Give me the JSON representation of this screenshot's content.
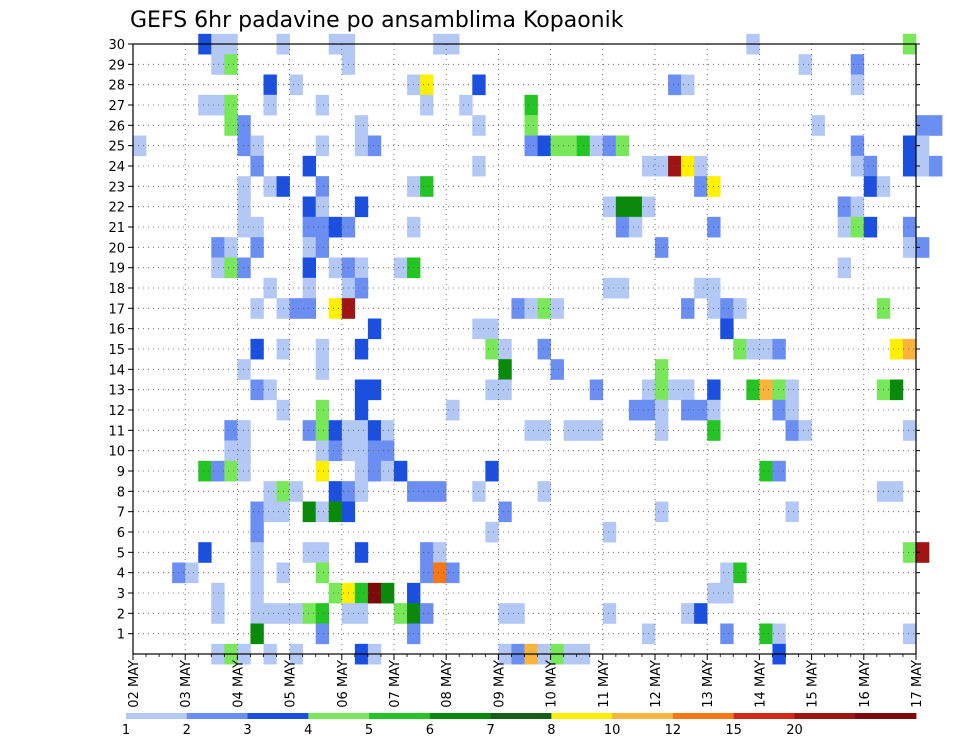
{
  "chart_data": {
    "type": "heatmap",
    "title": "GEFS 6hr padavine po ansamblima Kopaonik",
    "xlabel": "",
    "ylabel": "",
    "x_tick_labels": [
      "02 MAY",
      "03 MAY",
      "04 MAY",
      "05 MAY",
      "06 MAY",
      "07 MAY",
      "08 MAY",
      "09 MAY",
      "10 MAY",
      "11 MAY",
      "12 MAY",
      "13 MAY",
      "14 MAY",
      "15 MAY",
      "16 MAY",
      "17 MAY"
    ],
    "y_tick_labels": [
      "1",
      "2",
      "3",
      "4",
      "5",
      "6",
      "7",
      "8",
      "9",
      "10",
      "11",
      "12",
      "13",
      "14",
      "15",
      "16",
      "17",
      "18",
      "19",
      "20",
      "21",
      "22",
      "23",
      "24",
      "25",
      "26",
      "27",
      "28",
      "29",
      "30"
    ],
    "ensemble_range": [
      0,
      30
    ],
    "steps_per_day": 4,
    "grid": "dotted",
    "colorbar": {
      "tick_labels": [
        "1",
        "2",
        "3",
        "4",
        "5",
        "6",
        "7",
        "8",
        "10",
        "12",
        "15",
        "20"
      ],
      "bin_colors": [
        "#b4c8f5",
        "#6b8ef2",
        "#1a4fe0",
        "#78e85a",
        "#25c425",
        "#0a8a0a",
        "#156015",
        "#fff000",
        "#fab43c",
        "#f57814",
        "#d22814",
        "#a01414",
        "#7d0a0a"
      ]
    },
    "cells": [
      [
        5,
        30,
        2
      ],
      [
        6,
        30,
        0
      ],
      [
        7,
        30,
        0
      ],
      [
        11,
        30,
        0
      ],
      [
        15,
        30,
        0
      ],
      [
        16,
        30,
        0
      ],
      [
        23,
        30,
        0
      ],
      [
        24,
        30,
        0
      ],
      [
        47,
        30,
        0
      ],
      [
        59,
        30,
        3
      ],
      [
        6,
        29,
        0
      ],
      [
        7,
        29,
        3
      ],
      [
        16,
        29,
        0
      ],
      [
        51,
        29,
        0
      ],
      [
        55,
        29,
        1
      ],
      [
        10,
        28,
        2
      ],
      [
        12,
        28,
        0
      ],
      [
        21,
        28,
        0
      ],
      [
        22,
        28,
        7
      ],
      [
        26,
        28,
        2
      ],
      [
        41,
        28,
        1
      ],
      [
        42,
        28,
        0
      ],
      [
        55,
        28,
        0
      ],
      [
        5,
        27,
        0
      ],
      [
        6,
        27,
        0
      ],
      [
        7,
        27,
        3
      ],
      [
        10,
        27,
        0
      ],
      [
        14,
        27,
        0
      ],
      [
        22,
        27,
        0
      ],
      [
        25,
        27,
        0
      ],
      [
        30,
        27,
        4
      ],
      [
        7,
        26,
        3
      ],
      [
        8,
        26,
        1
      ],
      [
        17,
        26,
        0
      ],
      [
        26,
        26,
        0
      ],
      [
        30,
        26,
        3
      ],
      [
        52,
        26,
        0
      ],
      [
        60,
        26,
        1
      ],
      [
        61,
        26,
        1
      ],
      [
        0,
        25,
        0
      ],
      [
        8,
        25,
        1
      ],
      [
        9,
        25,
        0
      ],
      [
        14,
        25,
        0
      ],
      [
        17,
        25,
        0
      ],
      [
        18,
        25,
        1
      ],
      [
        30,
        25,
        1
      ],
      [
        31,
        25,
        2
      ],
      [
        32,
        25,
        3
      ],
      [
        33,
        25,
        3
      ],
      [
        34,
        25,
        4
      ],
      [
        35,
        25,
        0
      ],
      [
        36,
        25,
        1
      ],
      [
        37,
        25,
        3
      ],
      [
        55,
        25,
        1
      ],
      [
        59,
        25,
        2
      ],
      [
        60,
        25,
        0
      ],
      [
        9,
        24,
        1
      ],
      [
        13,
        24,
        2
      ],
      [
        26,
        24,
        0
      ],
      [
        39,
        24,
        0
      ],
      [
        40,
        24,
        0
      ],
      [
        41,
        24,
        11
      ],
      [
        42,
        24,
        7
      ],
      [
        43,
        24,
        0
      ],
      [
        55,
        24,
        0
      ],
      [
        56,
        24,
        1
      ],
      [
        59,
        24,
        2
      ],
      [
        60,
        24,
        0
      ],
      [
        61,
        24,
        1
      ],
      [
        8,
        23,
        0
      ],
      [
        10,
        23,
        0
      ],
      [
        11,
        23,
        2
      ],
      [
        14,
        23,
        1
      ],
      [
        21,
        23,
        0
      ],
      [
        22,
        23,
        4
      ],
      [
        43,
        23,
        1
      ],
      [
        44,
        23,
        7
      ],
      [
        56,
        23,
        2
      ],
      [
        57,
        23,
        0
      ],
      [
        8,
        22,
        0
      ],
      [
        13,
        22,
        2
      ],
      [
        14,
        22,
        0
      ],
      [
        17,
        22,
        2
      ],
      [
        36,
        22,
        0
      ],
      [
        37,
        22,
        5
      ],
      [
        38,
        22,
        5
      ],
      [
        39,
        22,
        0
      ],
      [
        54,
        22,
        1
      ],
      [
        55,
        22,
        0
      ],
      [
        8,
        21,
        0
      ],
      [
        9,
        21,
        0
      ],
      [
        13,
        21,
        1
      ],
      [
        14,
        21,
        1
      ],
      [
        15,
        21,
        2
      ],
      [
        16,
        21,
        1
      ],
      [
        21,
        21,
        0
      ],
      [
        37,
        21,
        1
      ],
      [
        38,
        21,
        0
      ],
      [
        44,
        21,
        1
      ],
      [
        54,
        21,
        0
      ],
      [
        55,
        21,
        3
      ],
      [
        56,
        21,
        2
      ],
      [
        59,
        21,
        1
      ],
      [
        6,
        20,
        1
      ],
      [
        7,
        20,
        0
      ],
      [
        9,
        20,
        1
      ],
      [
        13,
        20,
        0
      ],
      [
        14,
        20,
        1
      ],
      [
        40,
        20,
        1
      ],
      [
        59,
        20,
        0
      ],
      [
        60,
        20,
        1
      ],
      [
        6,
        19,
        0
      ],
      [
        7,
        19,
        3
      ],
      [
        8,
        19,
        1
      ],
      [
        13,
        19,
        2
      ],
      [
        15,
        19,
        0
      ],
      [
        16,
        19,
        1
      ],
      [
        17,
        19,
        0
      ],
      [
        20,
        19,
        0
      ],
      [
        21,
        19,
        4
      ],
      [
        54,
        19,
        0
      ],
      [
        10,
        18,
        0
      ],
      [
        13,
        18,
        0
      ],
      [
        16,
        18,
        0
      ],
      [
        17,
        18,
        1
      ],
      [
        36,
        18,
        0
      ],
      [
        37,
        18,
        0
      ],
      [
        43,
        18,
        0
      ],
      [
        44,
        18,
        0
      ],
      [
        9,
        17,
        0
      ],
      [
        11,
        17,
        0
      ],
      [
        12,
        17,
        1
      ],
      [
        13,
        17,
        1
      ],
      [
        15,
        17,
        7
      ],
      [
        16,
        17,
        11
      ],
      [
        29,
        17,
        1
      ],
      [
        30,
        17,
        0
      ],
      [
        31,
        17,
        3
      ],
      [
        32,
        17,
        0
      ],
      [
        42,
        17,
        1
      ],
      [
        44,
        17,
        0
      ],
      [
        45,
        17,
        1
      ],
      [
        46,
        17,
        0
      ],
      [
        57,
        17,
        3
      ],
      [
        18,
        16,
        2
      ],
      [
        26,
        16,
        0
      ],
      [
        27,
        16,
        0
      ],
      [
        45,
        16,
        2
      ],
      [
        9,
        15,
        2
      ],
      [
        11,
        15,
        0
      ],
      [
        14,
        15,
        0
      ],
      [
        17,
        15,
        2
      ],
      [
        27,
        15,
        3
      ],
      [
        28,
        15,
        0
      ],
      [
        31,
        15,
        1
      ],
      [
        46,
        15,
        3
      ],
      [
        47,
        15,
        0
      ],
      [
        48,
        15,
        0
      ],
      [
        49,
        15,
        1
      ],
      [
        58,
        15,
        7
      ],
      [
        59,
        15,
        8
      ],
      [
        8,
        14,
        0
      ],
      [
        14,
        14,
        0
      ],
      [
        28,
        14,
        5
      ],
      [
        32,
        14,
        1
      ],
      [
        40,
        14,
        3
      ],
      [
        9,
        13,
        1
      ],
      [
        10,
        13,
        0
      ],
      [
        17,
        13,
        2
      ],
      [
        18,
        13,
        2
      ],
      [
        27,
        13,
        0
      ],
      [
        28,
        13,
        0
      ],
      [
        35,
        13,
        1
      ],
      [
        39,
        13,
        0
      ],
      [
        40,
        13,
        3
      ],
      [
        41,
        13,
        0
      ],
      [
        42,
        13,
        0
      ],
      [
        44,
        13,
        2
      ],
      [
        47,
        13,
        4
      ],
      [
        48,
        13,
        8
      ],
      [
        49,
        13,
        3
      ],
      [
        50,
        13,
        0
      ],
      [
        57,
        13,
        3
      ],
      [
        58,
        13,
        5
      ],
      [
        11,
        12,
        0
      ],
      [
        14,
        12,
        3
      ],
      [
        17,
        12,
        2
      ],
      [
        24,
        12,
        0
      ],
      [
        38,
        12,
        1
      ],
      [
        39,
        12,
        1
      ],
      [
        40,
        12,
        0
      ],
      [
        42,
        12,
        1
      ],
      [
        43,
        12,
        1
      ],
      [
        44,
        12,
        0
      ],
      [
        49,
        12,
        1
      ],
      [
        50,
        12,
        0
      ],
      [
        7,
        11,
        1
      ],
      [
        8,
        11,
        0
      ],
      [
        13,
        11,
        1
      ],
      [
        14,
        11,
        3
      ],
      [
        15,
        11,
        2
      ],
      [
        16,
        11,
        0
      ],
      [
        17,
        11,
        0
      ],
      [
        18,
        11,
        2
      ],
      [
        19,
        11,
        0
      ],
      [
        30,
        11,
        0
      ],
      [
        31,
        11,
        0
      ],
      [
        33,
        11,
        0
      ],
      [
        34,
        11,
        0
      ],
      [
        35,
        11,
        0
      ],
      [
        40,
        11,
        0
      ],
      [
        44,
        11,
        4
      ],
      [
        50,
        11,
        1
      ],
      [
        51,
        11,
        0
      ],
      [
        59,
        11,
        0
      ],
      [
        7,
        10,
        0
      ],
      [
        8,
        10,
        0
      ],
      [
        14,
        10,
        0
      ],
      [
        15,
        10,
        1
      ],
      [
        16,
        10,
        0
      ],
      [
        17,
        10,
        0
      ],
      [
        18,
        10,
        1
      ],
      [
        19,
        10,
        1
      ],
      [
        5,
        9,
        4
      ],
      [
        6,
        9,
        1
      ],
      [
        7,
        9,
        3
      ],
      [
        8,
        9,
        0
      ],
      [
        14,
        9,
        7
      ],
      [
        17,
        9,
        0
      ],
      [
        18,
        9,
        1
      ],
      [
        19,
        9,
        0
      ],
      [
        20,
        9,
        2
      ],
      [
        27,
        9,
        2
      ],
      [
        48,
        9,
        4
      ],
      [
        49,
        9,
        1
      ],
      [
        10,
        8,
        0
      ],
      [
        11,
        8,
        3
      ],
      [
        12,
        8,
        0
      ],
      [
        15,
        8,
        2
      ],
      [
        16,
        8,
        1
      ],
      [
        17,
        8,
        0
      ],
      [
        21,
        8,
        1
      ],
      [
        22,
        8,
        1
      ],
      [
        23,
        8,
        1
      ],
      [
        26,
        8,
        0
      ],
      [
        31,
        8,
        0
      ],
      [
        57,
        8,
        0
      ],
      [
        58,
        8,
        0
      ],
      [
        9,
        7,
        1
      ],
      [
        10,
        7,
        0
      ],
      [
        11,
        7,
        0
      ],
      [
        13,
        7,
        5
      ],
      [
        14,
        7,
        0
      ],
      [
        15,
        7,
        5
      ],
      [
        16,
        7,
        2
      ],
      [
        28,
        7,
        1
      ],
      [
        40,
        7,
        0
      ],
      [
        50,
        7,
        0
      ],
      [
        9,
        6,
        1
      ],
      [
        27,
        6,
        0
      ],
      [
        36,
        6,
        0
      ],
      [
        5,
        5,
        2
      ],
      [
        9,
        5,
        0
      ],
      [
        13,
        5,
        0
      ],
      [
        14,
        5,
        0
      ],
      [
        17,
        5,
        2
      ],
      [
        22,
        5,
        1
      ],
      [
        23,
        5,
        0
      ],
      [
        59,
        5,
        3
      ],
      [
        60,
        5,
        11
      ],
      [
        3,
        4,
        1
      ],
      [
        4,
        4,
        0
      ],
      [
        9,
        4,
        0
      ],
      [
        11,
        4,
        0
      ],
      [
        14,
        4,
        3
      ],
      [
        22,
        4,
        1
      ],
      [
        23,
        4,
        9
      ],
      [
        24,
        4,
        1
      ],
      [
        45,
        4,
        0
      ],
      [
        46,
        4,
        4
      ],
      [
        6,
        3,
        0
      ],
      [
        9,
        3,
        0
      ],
      [
        15,
        3,
        3
      ],
      [
        16,
        3,
        7
      ],
      [
        17,
        3,
        4
      ],
      [
        18,
        3,
        12
      ],
      [
        19,
        3,
        5
      ],
      [
        21,
        3,
        2
      ],
      [
        44,
        3,
        0
      ],
      [
        45,
        3,
        0
      ],
      [
        6,
        2,
        0
      ],
      [
        9,
        2,
        0
      ],
      [
        10,
        2,
        0
      ],
      [
        11,
        2,
        0
      ],
      [
        12,
        2,
        0
      ],
      [
        13,
        2,
        3
      ],
      [
        14,
        2,
        4
      ],
      [
        16,
        2,
        0
      ],
      [
        17,
        2,
        0
      ],
      [
        20,
        2,
        3
      ],
      [
        21,
        2,
        5
      ],
      [
        22,
        2,
        1
      ],
      [
        28,
        2,
        0
      ],
      [
        29,
        2,
        0
      ],
      [
        36,
        2,
        0
      ],
      [
        42,
        2,
        0
      ],
      [
        43,
        2,
        2
      ],
      [
        9,
        1,
        5
      ],
      [
        14,
        1,
        1
      ],
      [
        21,
        1,
        1
      ],
      [
        39,
        1,
        0
      ],
      [
        45,
        1,
        1
      ],
      [
        48,
        1,
        4
      ],
      [
        49,
        1,
        0
      ],
      [
        59,
        1,
        0
      ],
      [
        6,
        0,
        0
      ],
      [
        7,
        0,
        3
      ],
      [
        8,
        0,
        0
      ],
      [
        10,
        0,
        0
      ],
      [
        12,
        0,
        0
      ],
      [
        17,
        0,
        2
      ],
      [
        18,
        0,
        0
      ],
      [
        28,
        0,
        0
      ],
      [
        29,
        0,
        1
      ],
      [
        30,
        0,
        8
      ],
      [
        31,
        0,
        0
      ],
      [
        32,
        0,
        3
      ],
      [
        33,
        0,
        0
      ],
      [
        34,
        0,
        0
      ],
      [
        49,
        0,
        2
      ]
    ]
  }
}
